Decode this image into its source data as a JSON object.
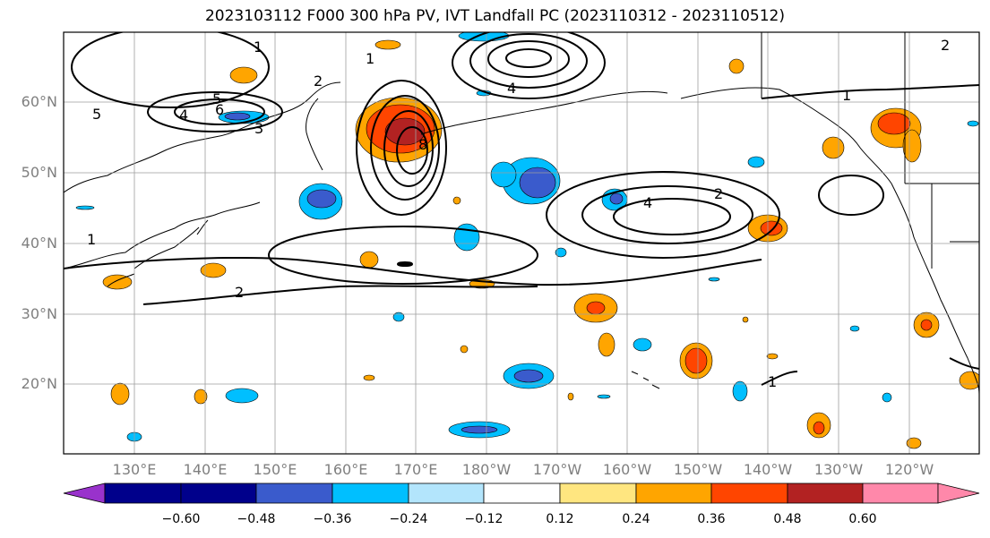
{
  "title": "2023103112 F000 300 hPa PV, IVT Landfall PC (2023110312 - 2023110512)",
  "lat_labels": [
    "60°N",
    "50°N",
    "40°N",
    "30°N",
    "20°N"
  ],
  "lon_labels": [
    "130°E",
    "140°E",
    "150°E",
    "160°E",
    "170°E",
    "180°W",
    "170°W",
    "160°W",
    "150°W",
    "140°W",
    "130°W",
    "120°W"
  ],
  "contour_labels": [
    "1",
    "2",
    "3",
    "4",
    "5",
    "6",
    "8",
    "1",
    "2",
    "4",
    "1",
    "2",
    "1",
    "1",
    "2",
    "4",
    "5"
  ],
  "colorbar": {
    "ticks": [
      "−0.60",
      "−0.48",
      "−0.36",
      "−0.24",
      "−0.12",
      "0.12",
      "0.24",
      "0.36",
      "0.48",
      "0.60"
    ],
    "colors": [
      "#9932cc",
      "#00008b",
      "#3a5bcc",
      "#00bfff",
      "#b3e5fc",
      "#ffffff",
      "#ffe680",
      "#ffa500",
      "#ff4500",
      "#b22222",
      "#ff88aa"
    ]
  }
}
